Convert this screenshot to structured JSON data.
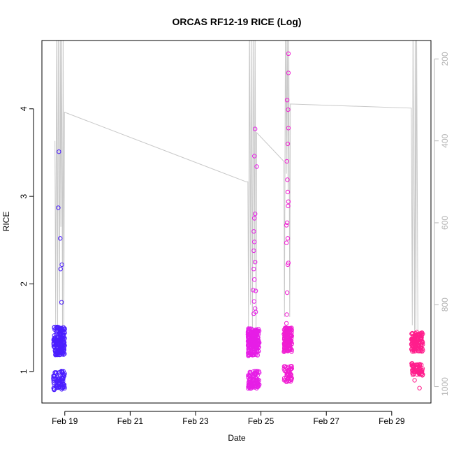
{
  "chart_data": {
    "type": "scatter",
    "title": "ORCAS RF12-19 RICE (Log)",
    "xlabel": "Date",
    "ylabel": "RICE",
    "x_ticks": [
      {
        "day": 19,
        "label": "Feb 19"
      },
      {
        "day": 21,
        "label": "Feb 21"
      },
      {
        "day": 23,
        "label": "Feb 23"
      },
      {
        "day": 25,
        "label": "Feb 25"
      },
      {
        "day": 27,
        "label": "Feb 27"
      },
      {
        "day": 29,
        "label": "Feb 29"
      }
    ],
    "xlim": [
      "Feb 18.3",
      "Feb 30.2"
    ],
    "y_ticks": [
      1,
      2,
      3,
      4
    ],
    "ylim": [
      0.64,
      4.78
    ],
    "y2_ticks": [
      200,
      400,
      600,
      800,
      1000
    ],
    "y2lim_top_to_bottom": [
      155,
      1040
    ],
    "colors": {
      "axis": "#000000",
      "right_axis": "#b4b4b4",
      "pressure_line": "#c8c8c8"
    },
    "series": [
      {
        "color": "#4b1eff",
        "points": [
          [
            18.82,
            3.51
          ],
          [
            18.8,
            2.87
          ],
          [
            18.86,
            2.52
          ],
          [
            18.87,
            2.17
          ],
          [
            18.91,
            2.22
          ],
          [
            18.9,
            1.79
          ]
        ],
        "cluster": {
          "x_min": 18.65,
          "x_max": 19.0,
          "y_min": 0.79,
          "y_max": 1.51,
          "n": 260,
          "seed": 11
        }
      },
      {
        "color": "#e61ee6",
        "points": [
          [
            24.82,
            3.77
          ],
          [
            24.8,
            3.46
          ],
          [
            24.87,
            3.34
          ],
          [
            24.82,
            2.8
          ],
          [
            24.8,
            2.75
          ],
          [
            24.78,
            2.6
          ],
          [
            24.8,
            2.48
          ],
          [
            24.78,
            2.38
          ],
          [
            24.82,
            2.25
          ],
          [
            24.78,
            2.17
          ],
          [
            24.8,
            2.05
          ],
          [
            24.84,
            1.92
          ],
          [
            24.76,
            1.93
          ],
          [
            24.79,
            1.8
          ],
          [
            24.82,
            1.72
          ],
          [
            24.78,
            1.66
          ],
          [
            24.84,
            1.68
          ]
        ],
        "cluster": {
          "x_min": 24.6,
          "x_max": 24.95,
          "y_min": 0.8,
          "y_max": 1.49,
          "n": 300,
          "seed": 23
        }
      },
      {
        "color": "#f01ed2",
        "points": [
          [
            25.84,
            4.63
          ],
          [
            25.84,
            4.41
          ],
          [
            25.8,
            4.1
          ],
          [
            25.83,
            3.99
          ],
          [
            25.84,
            3.78
          ],
          [
            25.82,
            3.6
          ],
          [
            25.79,
            3.4
          ],
          [
            25.81,
            3.19
          ],
          [
            25.82,
            3.05
          ],
          [
            25.84,
            2.94
          ],
          [
            25.83,
            2.89
          ],
          [
            25.8,
            2.7
          ],
          [
            25.78,
            2.67
          ],
          [
            25.78,
            2.47
          ],
          [
            25.82,
            2.52
          ],
          [
            25.84,
            2.24
          ],
          [
            25.82,
            2.22
          ],
          [
            25.8,
            1.9
          ],
          [
            25.79,
            1.65
          ],
          [
            25.78,
            1.55
          ]
        ],
        "cluster": {
          "x_min": 25.7,
          "x_max": 25.95,
          "y_min": 0.88,
          "y_max": 1.5,
          "n": 200,
          "seed": 37
        }
      },
      {
        "color": "#ff1e8c",
        "points": [
          [
            29.85,
            0.81
          ],
          [
            29.7,
            0.9
          ],
          [
            29.65,
            1.0
          ],
          [
            29.83,
            1.06
          ]
        ],
        "cluster": {
          "x_min": 29.6,
          "x_max": 29.95,
          "y_min": 0.95,
          "y_max": 1.45,
          "n": 200,
          "seed": 53
        }
      }
    ],
    "pressure_path": [
      [
        18.7,
        400
      ],
      [
        18.72,
        850
      ],
      [
        18.75,
        100
      ],
      [
        18.78,
        860
      ],
      [
        18.8,
        100
      ],
      [
        18.84,
        800
      ],
      [
        18.86,
        100
      ],
      [
        18.88,
        610
      ],
      [
        18.9,
        100
      ],
      [
        18.93,
        860
      ],
      [
        18.95,
        100
      ],
      [
        18.97,
        860
      ],
      [
        18.99,
        330
      ],
      [
        24.55,
        500
      ],
      [
        24.6,
        500
      ],
      [
        24.62,
        860
      ],
      [
        24.65,
        100
      ],
      [
        24.68,
        800
      ],
      [
        24.7,
        100
      ],
      [
        24.74,
        860
      ],
      [
        24.76,
        100
      ],
      [
        24.8,
        700
      ],
      [
        24.82,
        100
      ],
      [
        24.85,
        860
      ],
      [
        24.87,
        380
      ],
      [
        25.7,
        450
      ],
      [
        25.72,
        830
      ],
      [
        25.75,
        100
      ],
      [
        25.78,
        480
      ],
      [
        25.8,
        100
      ],
      [
        25.83,
        520
      ],
      [
        25.85,
        100
      ],
      [
        25.88,
        830
      ],
      [
        25.9,
        310
      ],
      [
        29.6,
        320
      ],
      [
        29.63,
        850
      ],
      [
        29.65,
        100
      ],
      [
        29.7,
        870
      ],
      [
        29.72,
        100
      ],
      [
        29.74,
        860
      ],
      [
        29.76,
        100
      ],
      [
        29.8,
        860
      ],
      [
        29.82,
        870
      ]
    ]
  }
}
